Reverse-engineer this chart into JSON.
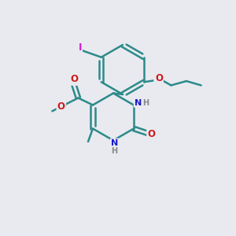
{
  "background_color": "#e8eaf0",
  "bond_color": "#2d8a8a",
  "bond_width": 1.8,
  "atoms": {
    "C": "#2d8a8a",
    "N": "#1a1acc",
    "O": "#cc1a1a",
    "I": "#cc22cc",
    "H": "#888888"
  },
  "xlim": [
    0,
    10
  ],
  "ylim": [
    0,
    10
  ]
}
